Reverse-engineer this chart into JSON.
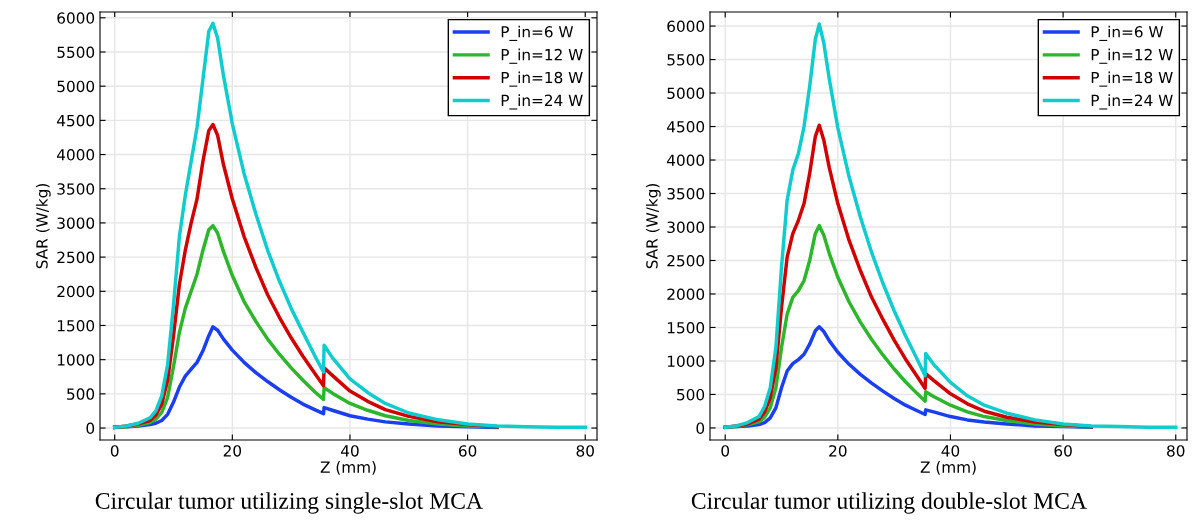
{
  "chart_data": [
    {
      "type": "line",
      "xlabel": "Z (mm)",
      "ylabel": "SAR (W/kg)",
      "annotations": [
        "Circular tumor utilizing single-slot MCA"
      ],
      "x": [
        0,
        2,
        4,
        6,
        7,
        8,
        9,
        10,
        11,
        12,
        13,
        14,
        15,
        16,
        16.7,
        17.5,
        18.5,
        20,
        22,
        24,
        26,
        28,
        30,
        32,
        34,
        35.5,
        35.6,
        37,
        40,
        43,
        46,
        50,
        55,
        60,
        65,
        70,
        75,
        80
      ],
      "series": [
        {
          "name": "P_in=6 W",
          "color": "#1a3ef0",
          "values": [
            10,
            20,
            30,
            50,
            70,
            110,
            200,
            380,
            600,
            760,
            860,
            960,
            1130,
            1350,
            1480,
            1430,
            1300,
            1140,
            960,
            810,
            680,
            560,
            450,
            350,
            270,
            210,
            300,
            260,
            180,
            130,
            90,
            60,
            30,
            20,
            10,
            null,
            null,
            null
          ]
        },
        {
          "name": "P_in=12 W",
          "color": "#2db52d",
          "values": [
            10,
            20,
            40,
            80,
            130,
            230,
            450,
            900,
            1400,
            1750,
            2000,
            2250,
            2600,
            2900,
            2960,
            2850,
            2580,
            2230,
            1850,
            1560,
            1300,
            1080,
            880,
            700,
            530,
            420,
            590,
            510,
            360,
            260,
            180,
            110,
            60,
            30,
            20,
            null,
            null,
            null
          ]
        },
        {
          "name": "P_in=18 W",
          "color": "#d00000",
          "values": [
            10,
            30,
            60,
            110,
            190,
            350,
            700,
            1350,
            2100,
            2600,
            3000,
            3350,
            3900,
            4350,
            4440,
            4280,
            3850,
            3350,
            2800,
            2350,
            1950,
            1620,
            1320,
            1050,
            800,
            620,
            880,
            770,
            540,
            390,
            270,
            170,
            90,
            50,
            20,
            null,
            null,
            null
          ]
        },
        {
          "name": "P_in=24 W",
          "color": "#10cccc",
          "values": [
            10,
            30,
            70,
            150,
            250,
            470,
            930,
            1800,
            2800,
            3400,
            3900,
            4400,
            5100,
            5800,
            5920,
            5700,
            5150,
            4450,
            3720,
            3130,
            2600,
            2150,
            1750,
            1400,
            1060,
            820,
            1210,
            1030,
            720,
            520,
            360,
            220,
            120,
            60,
            30,
            20,
            10,
            10
          ]
        }
      ],
      "xlim": [
        -2.5,
        82
      ],
      "ylim": [
        -175,
        6085
      ],
      "xticks": [
        0,
        20,
        40,
        60,
        80
      ],
      "yticks": [
        0,
        500,
        1000,
        1500,
        2000,
        2500,
        3000,
        3500,
        4000,
        4500,
        5000,
        5500,
        6000
      ],
      "grid": true,
      "legend": "top right",
      "marker": "none",
      "line_style": "solid"
    },
    {
      "type": "line",
      "xlabel": "Z (mm)",
      "ylabel": "SAR (W/kg)",
      "annotations": [
        "Circular tumor utilizing double-slot MCA"
      ],
      "x": [
        0,
        2,
        4,
        6,
        7,
        8,
        9,
        10,
        11,
        12,
        13,
        14,
        15,
        16,
        16.7,
        17.5,
        18.5,
        20,
        22,
        24,
        26,
        28,
        30,
        32,
        34,
        35.5,
        35.6,
        37,
        40,
        43,
        46,
        50,
        55,
        60,
        65,
        70,
        75,
        80
      ],
      "series": [
        {
          "name": "P_in=6 W",
          "color": "#1a3ef0",
          "values": [
            10,
            20,
            30,
            50,
            80,
            150,
            300,
            600,
            850,
            960,
            1020,
            1100,
            1250,
            1450,
            1510,
            1440,
            1300,
            1130,
            950,
            800,
            670,
            550,
            440,
            340,
            260,
            200,
            270,
            240,
            170,
            120,
            90,
            60,
            30,
            20,
            10,
            null,
            null,
            null
          ]
        },
        {
          "name": "P_in=12 W",
          "color": "#2db52d",
          "values": [
            10,
            20,
            50,
            90,
            160,
            300,
            600,
            1200,
            1700,
            1950,
            2050,
            2200,
            2500,
            2900,
            3020,
            2880,
            2600,
            2250,
            1880,
            1580,
            1320,
            1090,
            880,
            690,
            520,
            400,
            540,
            470,
            340,
            240,
            170,
            110,
            60,
            30,
            20,
            null,
            null,
            null
          ]
        },
        {
          "name": "P_in=18 W",
          "color": "#d00000",
          "values": [
            10,
            30,
            60,
            130,
            240,
            450,
            900,
            1800,
            2550,
            2900,
            3100,
            3350,
            3800,
            4350,
            4520,
            4300,
            3880,
            3350,
            2800,
            2350,
            1950,
            1620,
            1310,
            1030,
            780,
            590,
            810,
            710,
            510,
            360,
            250,
            160,
            90,
            50,
            20,
            null,
            null,
            null
          ]
        },
        {
          "name": "P_in=24 W",
          "color": "#10cccc",
          "values": [
            10,
            30,
            80,
            170,
            320,
            600,
            1200,
            2400,
            3400,
            3850,
            4100,
            4500,
            5100,
            5800,
            6030,
            5750,
            5200,
            4480,
            3750,
            3150,
            2620,
            2160,
            1750,
            1380,
            1040,
            780,
            1110,
            950,
            680,
            480,
            340,
            220,
            120,
            60,
            30,
            20,
            10,
            10
          ]
        }
      ],
      "xlim": [
        -2.7,
        82
      ],
      "ylim": [
        -180,
        6210
      ],
      "xticks": [
        0,
        20,
        40,
        60,
        80
      ],
      "yticks": [
        0,
        500,
        1000,
        1500,
        2000,
        2500,
        3000,
        3500,
        4000,
        4500,
        5000,
        5500,
        6000
      ],
      "grid": true,
      "legend": "top right",
      "marker": "none",
      "line_style": "solid"
    }
  ]
}
